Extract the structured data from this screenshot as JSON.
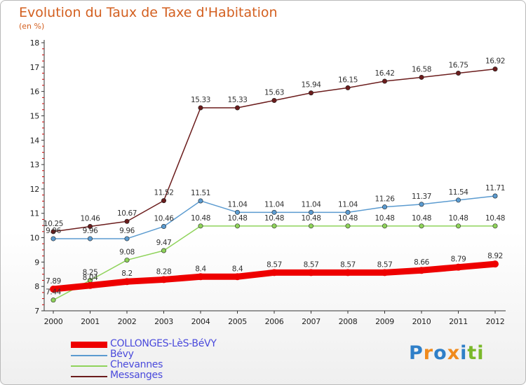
{
  "title": "Evolution du Taux de Taxe d'Habitation",
  "unit": "(en %)",
  "brand": {
    "letters": [
      "P",
      "r",
      "o",
      "x",
      "i",
      "t",
      "i"
    ],
    "colors": [
      "#2f7fc8",
      "#f08a1c",
      "#2f7fc8",
      "#f08a1c",
      "#2f7fc8",
      "#7ab82a",
      "#7ab82a"
    ]
  },
  "chart_data": {
    "type": "line",
    "title": "Evolution du Taux de Taxe d'Habitation",
    "ylabel": "(en %)",
    "xlabel": "",
    "x": [
      "2000",
      "2001",
      "2002",
      "2003",
      "2004",
      "2005",
      "2006",
      "2007",
      "2008",
      "2009",
      "2010",
      "2011",
      "2012"
    ],
    "ylim": [
      7,
      18
    ],
    "yticks": [
      "7",
      "8",
      "9",
      "10",
      "11",
      "12",
      "13",
      "14",
      "15",
      "16",
      "17",
      "18"
    ],
    "grid": false,
    "legend": "bottom-left",
    "series": [
      {
        "name": "Messanges",
        "color": "#6b1c1c",
        "values": [
          10.25,
          10.46,
          10.67,
          11.52,
          15.33,
          15.33,
          15.63,
          15.94,
          16.15,
          16.42,
          16.58,
          16.75,
          16.92
        ],
        "labels": [
          "10.25",
          "10.46",
          "10.67",
          "11.52",
          "15.33",
          "15.33",
          "15.63",
          "15.94",
          "16.15",
          "16.42",
          "16.58",
          "16.75",
          "16.92"
        ]
      },
      {
        "name": "Bévy",
        "color": "#5b9bd0",
        "values": [
          9.96,
          9.96,
          9.96,
          10.46,
          11.51,
          11.04,
          11.04,
          11.04,
          11.04,
          11.26,
          11.37,
          11.54,
          11.71
        ],
        "labels": [
          "9.96",
          "9.96",
          "9.96",
          "10.46",
          "11.51",
          "11.04",
          "11.04",
          "11.04",
          "11.04",
          "11.26",
          "11.37",
          "11.54",
          "11.71"
        ]
      },
      {
        "name": "Chevannes",
        "color": "#8fd35a",
        "values": [
          7.44,
          8.25,
          9.08,
          9.47,
          10.48,
          10.48,
          10.48,
          10.48,
          10.48,
          10.48,
          10.48,
          10.48,
          10.48
        ],
        "labels": [
          "7.44",
          "8.25",
          "9.08",
          "9.47",
          "10.48",
          "10.48",
          "10.48",
          "10.48",
          "10.48",
          "10.48",
          "10.48",
          "10.48",
          "10.48"
        ]
      },
      {
        "name": "COLLONGES-LèS-BéVY",
        "color": "#ee0000",
        "values": [
          7.89,
          8.04,
          8.2,
          8.28,
          8.4,
          8.4,
          8.57,
          8.57,
          8.57,
          8.57,
          8.66,
          8.79,
          8.92
        ],
        "labels": [
          "7.89",
          "8.04",
          "8.2",
          "8.28",
          "8.4",
          "8.4",
          "8.57",
          "8.57",
          "8.57",
          "8.57",
          "8.66",
          "8.79",
          "8.92"
        ]
      }
    ],
    "legend_order": [
      3,
      1,
      2,
      0
    ]
  }
}
